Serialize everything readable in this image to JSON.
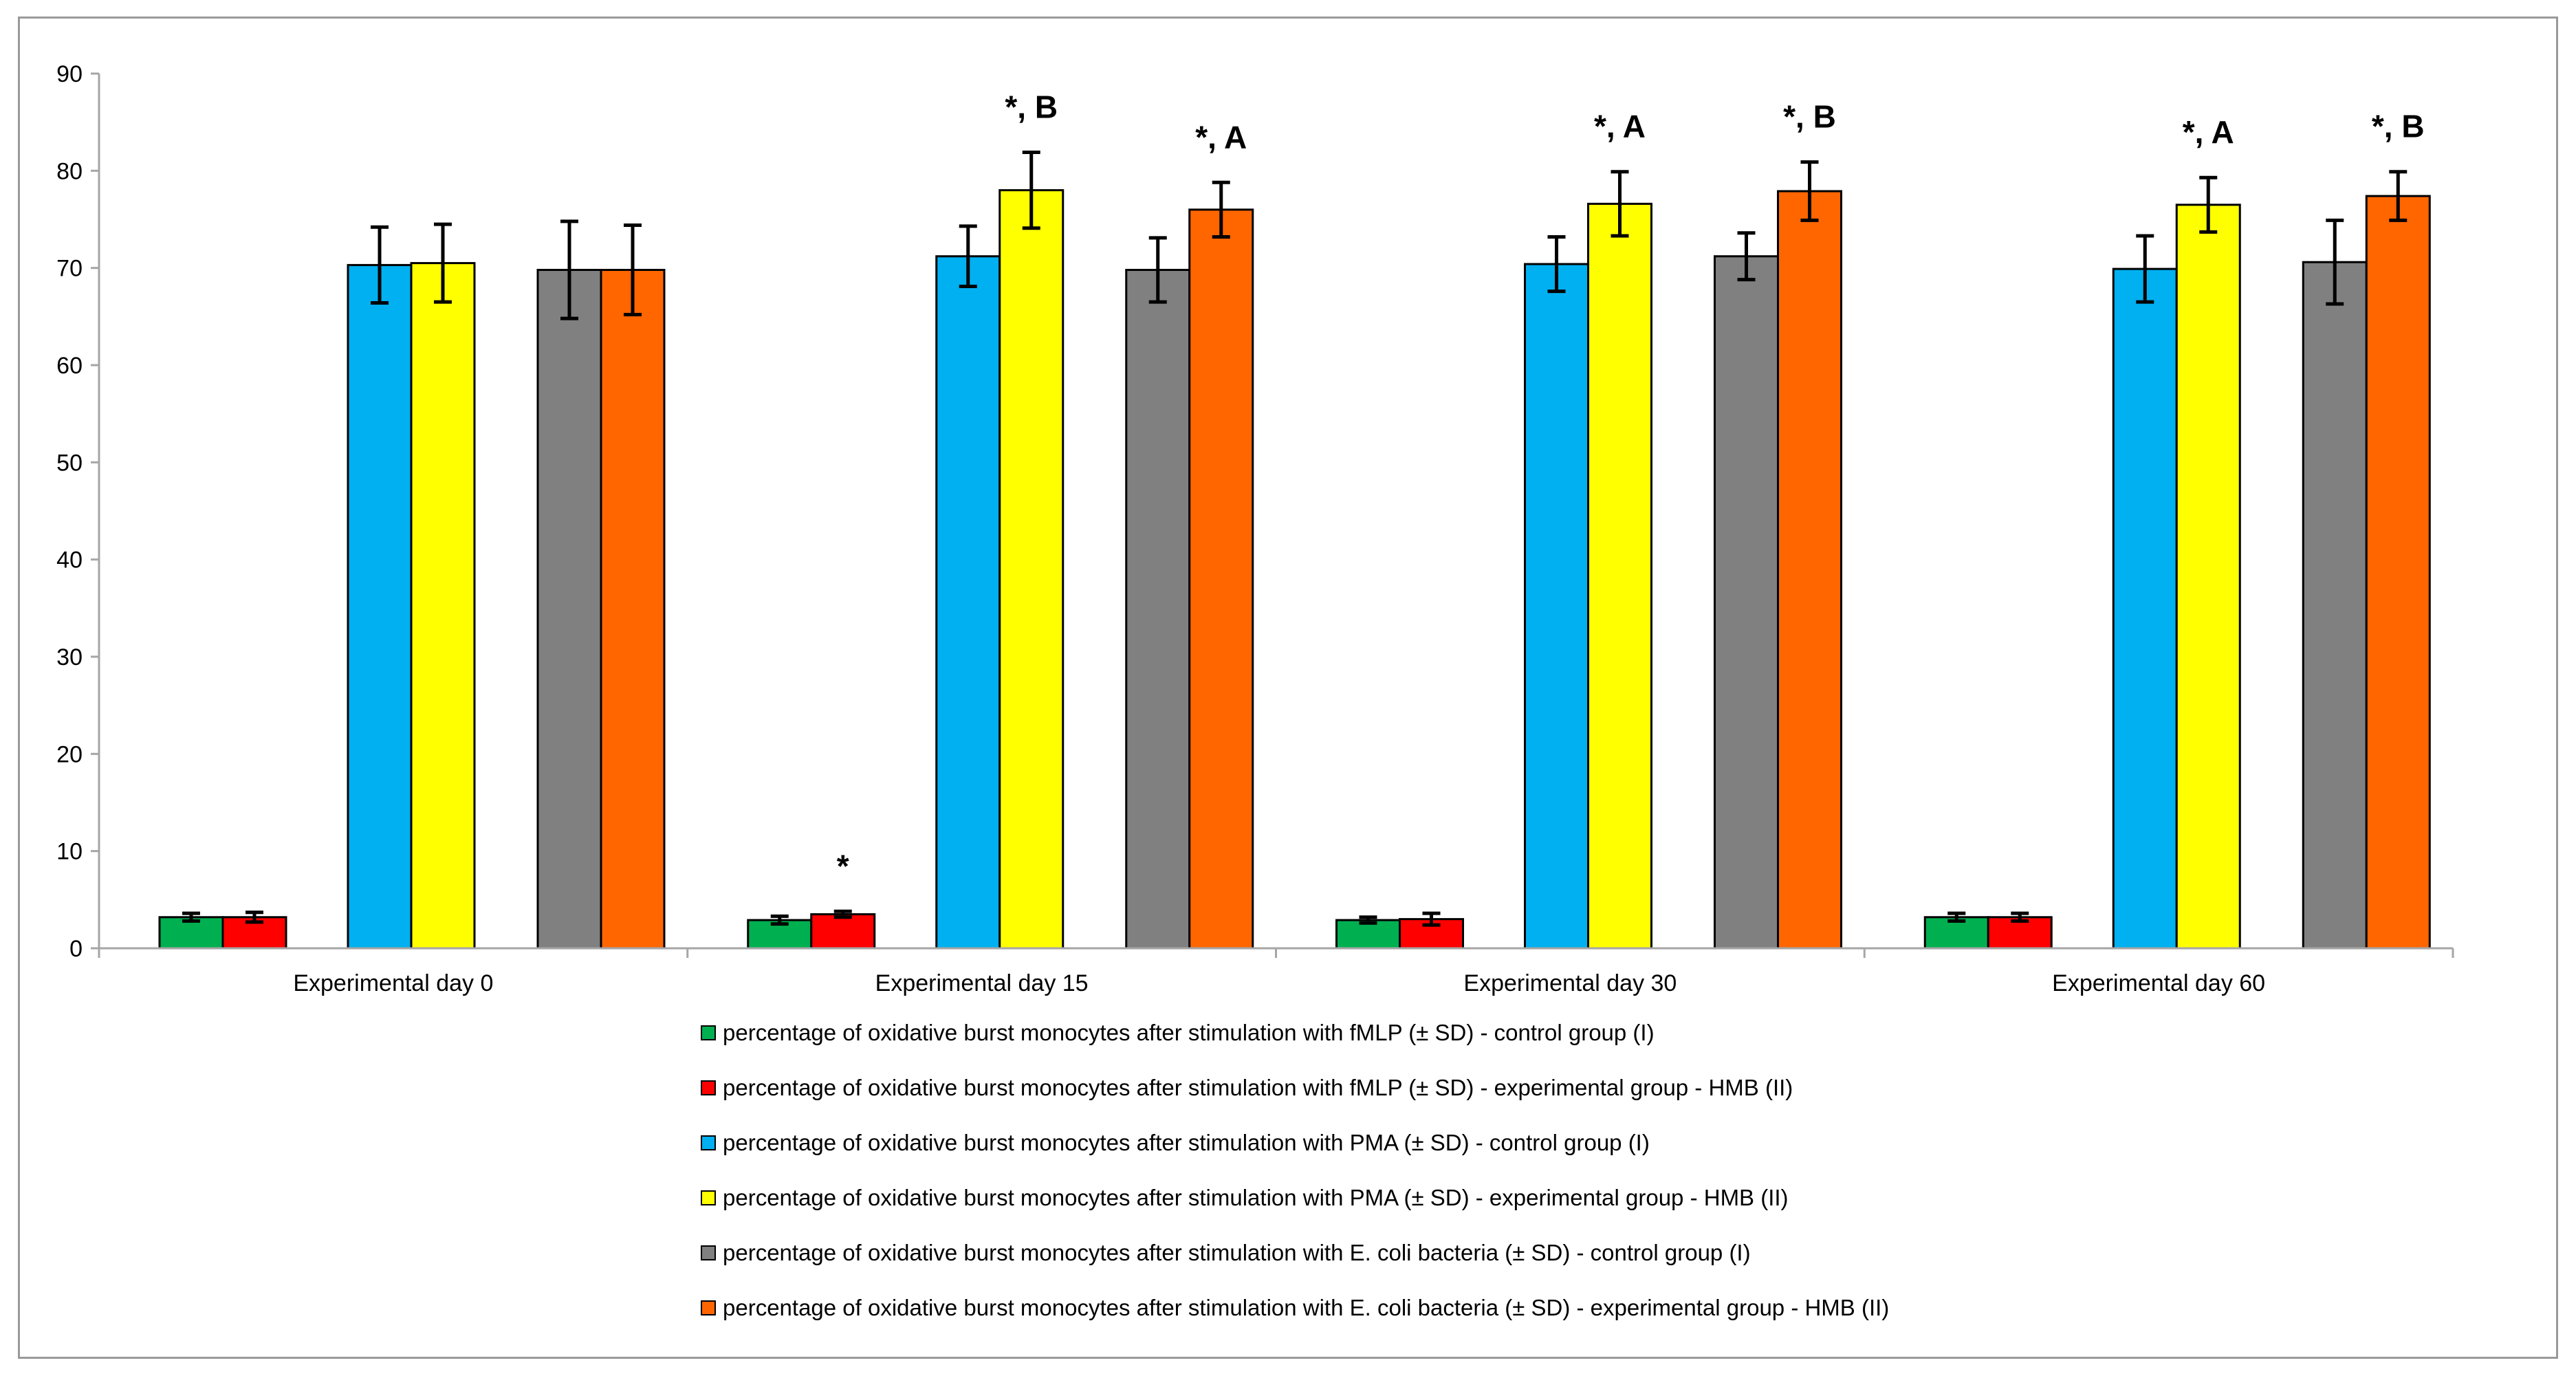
{
  "chart_data": {
    "type": "bar",
    "title": "",
    "xlabel": "",
    "ylabel": "",
    "ylim": [
      0,
      90
    ],
    "yticks": [
      0,
      10,
      20,
      30,
      40,
      50,
      60,
      70,
      80,
      90
    ],
    "categories": [
      "Experimental day 0",
      "Experimental day 15",
      "Experimental day 30",
      "Experimental day 60"
    ],
    "series": [
      {
        "name": "percentage of oxidative burst monocytes after stimulation with fMLP (± SD) - control group (I)",
        "color": "#00B050",
        "values": [
          3.2,
          2.9,
          2.9,
          3.2
        ],
        "errors": [
          0.4,
          0.4,
          0.3,
          0.4
        ],
        "annotations": [
          "",
          "",
          "",
          ""
        ]
      },
      {
        "name": "percentage of oxidative burst monocytes after stimulation with fMLP (± SD) - experimental group - HMB (II)",
        "color": "#FF0000",
        "values": [
          3.2,
          3.5,
          3.0,
          3.2
        ],
        "errors": [
          0.5,
          0.3,
          0.6,
          0.4
        ],
        "annotations": [
          "",
          "*",
          "",
          ""
        ]
      },
      {
        "name": "percentage of oxidative burst monocytes after stimulation with PMA (± SD) - control group (I)",
        "color": "#00B0F0",
        "values": [
          70.3,
          71.2,
          70.4,
          69.9
        ],
        "errors": [
          3.9,
          3.1,
          2.8,
          3.4
        ],
        "annotations": [
          "",
          "",
          "",
          ""
        ]
      },
      {
        "name": "percentage of oxidative burst monocytes after stimulation with PMA (± SD) - experimental group - HMB (II)",
        "color": "#FFFF00",
        "values": [
          70.5,
          78.0,
          76.6,
          76.5
        ],
        "errors": [
          4.0,
          3.9,
          3.3,
          2.8
        ],
        "annotations": [
          "",
          "*, B",
          "*, A",
          "*, A"
        ]
      },
      {
        "name": "percentage of oxidative burst monocytes after stimulation with E. coli bacteria (± SD) - control group (I)",
        "color": "#808080",
        "values": [
          69.8,
          69.8,
          71.2,
          70.6
        ],
        "errors": [
          5.0,
          3.3,
          2.4,
          4.3
        ],
        "annotations": [
          "",
          "",
          "",
          ""
        ]
      },
      {
        "name": "percentage of oxidative burst monocytes after stimulation with E. coli bacteria (± SD) - experimental group - HMB (II)",
        "color": "#FF6600",
        "values": [
          69.8,
          76.0,
          77.9,
          77.4
        ],
        "errors": [
          4.6,
          2.8,
          3.0,
          2.5
        ],
        "annotations": [
          "",
          "*, A",
          "*, B",
          "*, B"
        ]
      }
    ]
  }
}
